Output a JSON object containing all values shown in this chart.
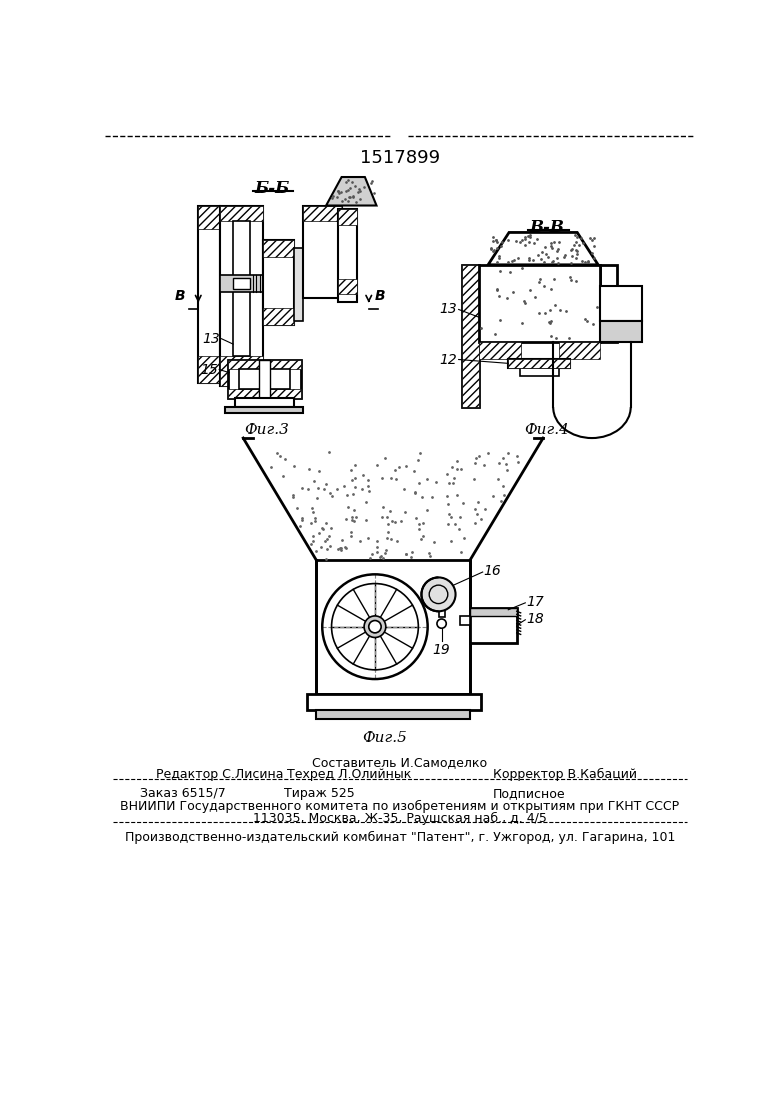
{
  "patent_number": "1517899",
  "fig3_label": "Фиг.3",
  "fig4_label": "Фиг.4",
  "fig5_label": "Фиг.5",
  "section_bb": "Б-Б",
  "section_vv": "В-В",
  "arrow_b_label": "В",
  "label_13_fig3": "13",
  "label_15_fig3": "15",
  "label_13_fig4": "13",
  "label_12_fig4": "12",
  "label_16": "16",
  "label_17": "17",
  "label_18": "18",
  "label_19": "19",
  "footer_line1": "Составитель И.Самоделко",
  "footer_line2_left": "Редактор С.Лисина",
  "footer_line2_mid": "Техред Л.Олийнык",
  "footer_line2_right": "Корректор В.Кабаций",
  "footer_zak": "Заказ 6515/7",
  "footer_tir": "Тираж 525",
  "footer_pod": "Подписное",
  "footer_line4": "ВНИИПИ Государственного комитета по изобретениям и открытиям при ГКНТ СССР",
  "footer_line5": "113035, Москва, Ж-35, Раушская наб., д. 4/5",
  "footer_line6": "Производственно-издательский комбинат \"Патент\", г. Ужгород, ул. Гагарина, 101",
  "bg_color": "#ffffff"
}
